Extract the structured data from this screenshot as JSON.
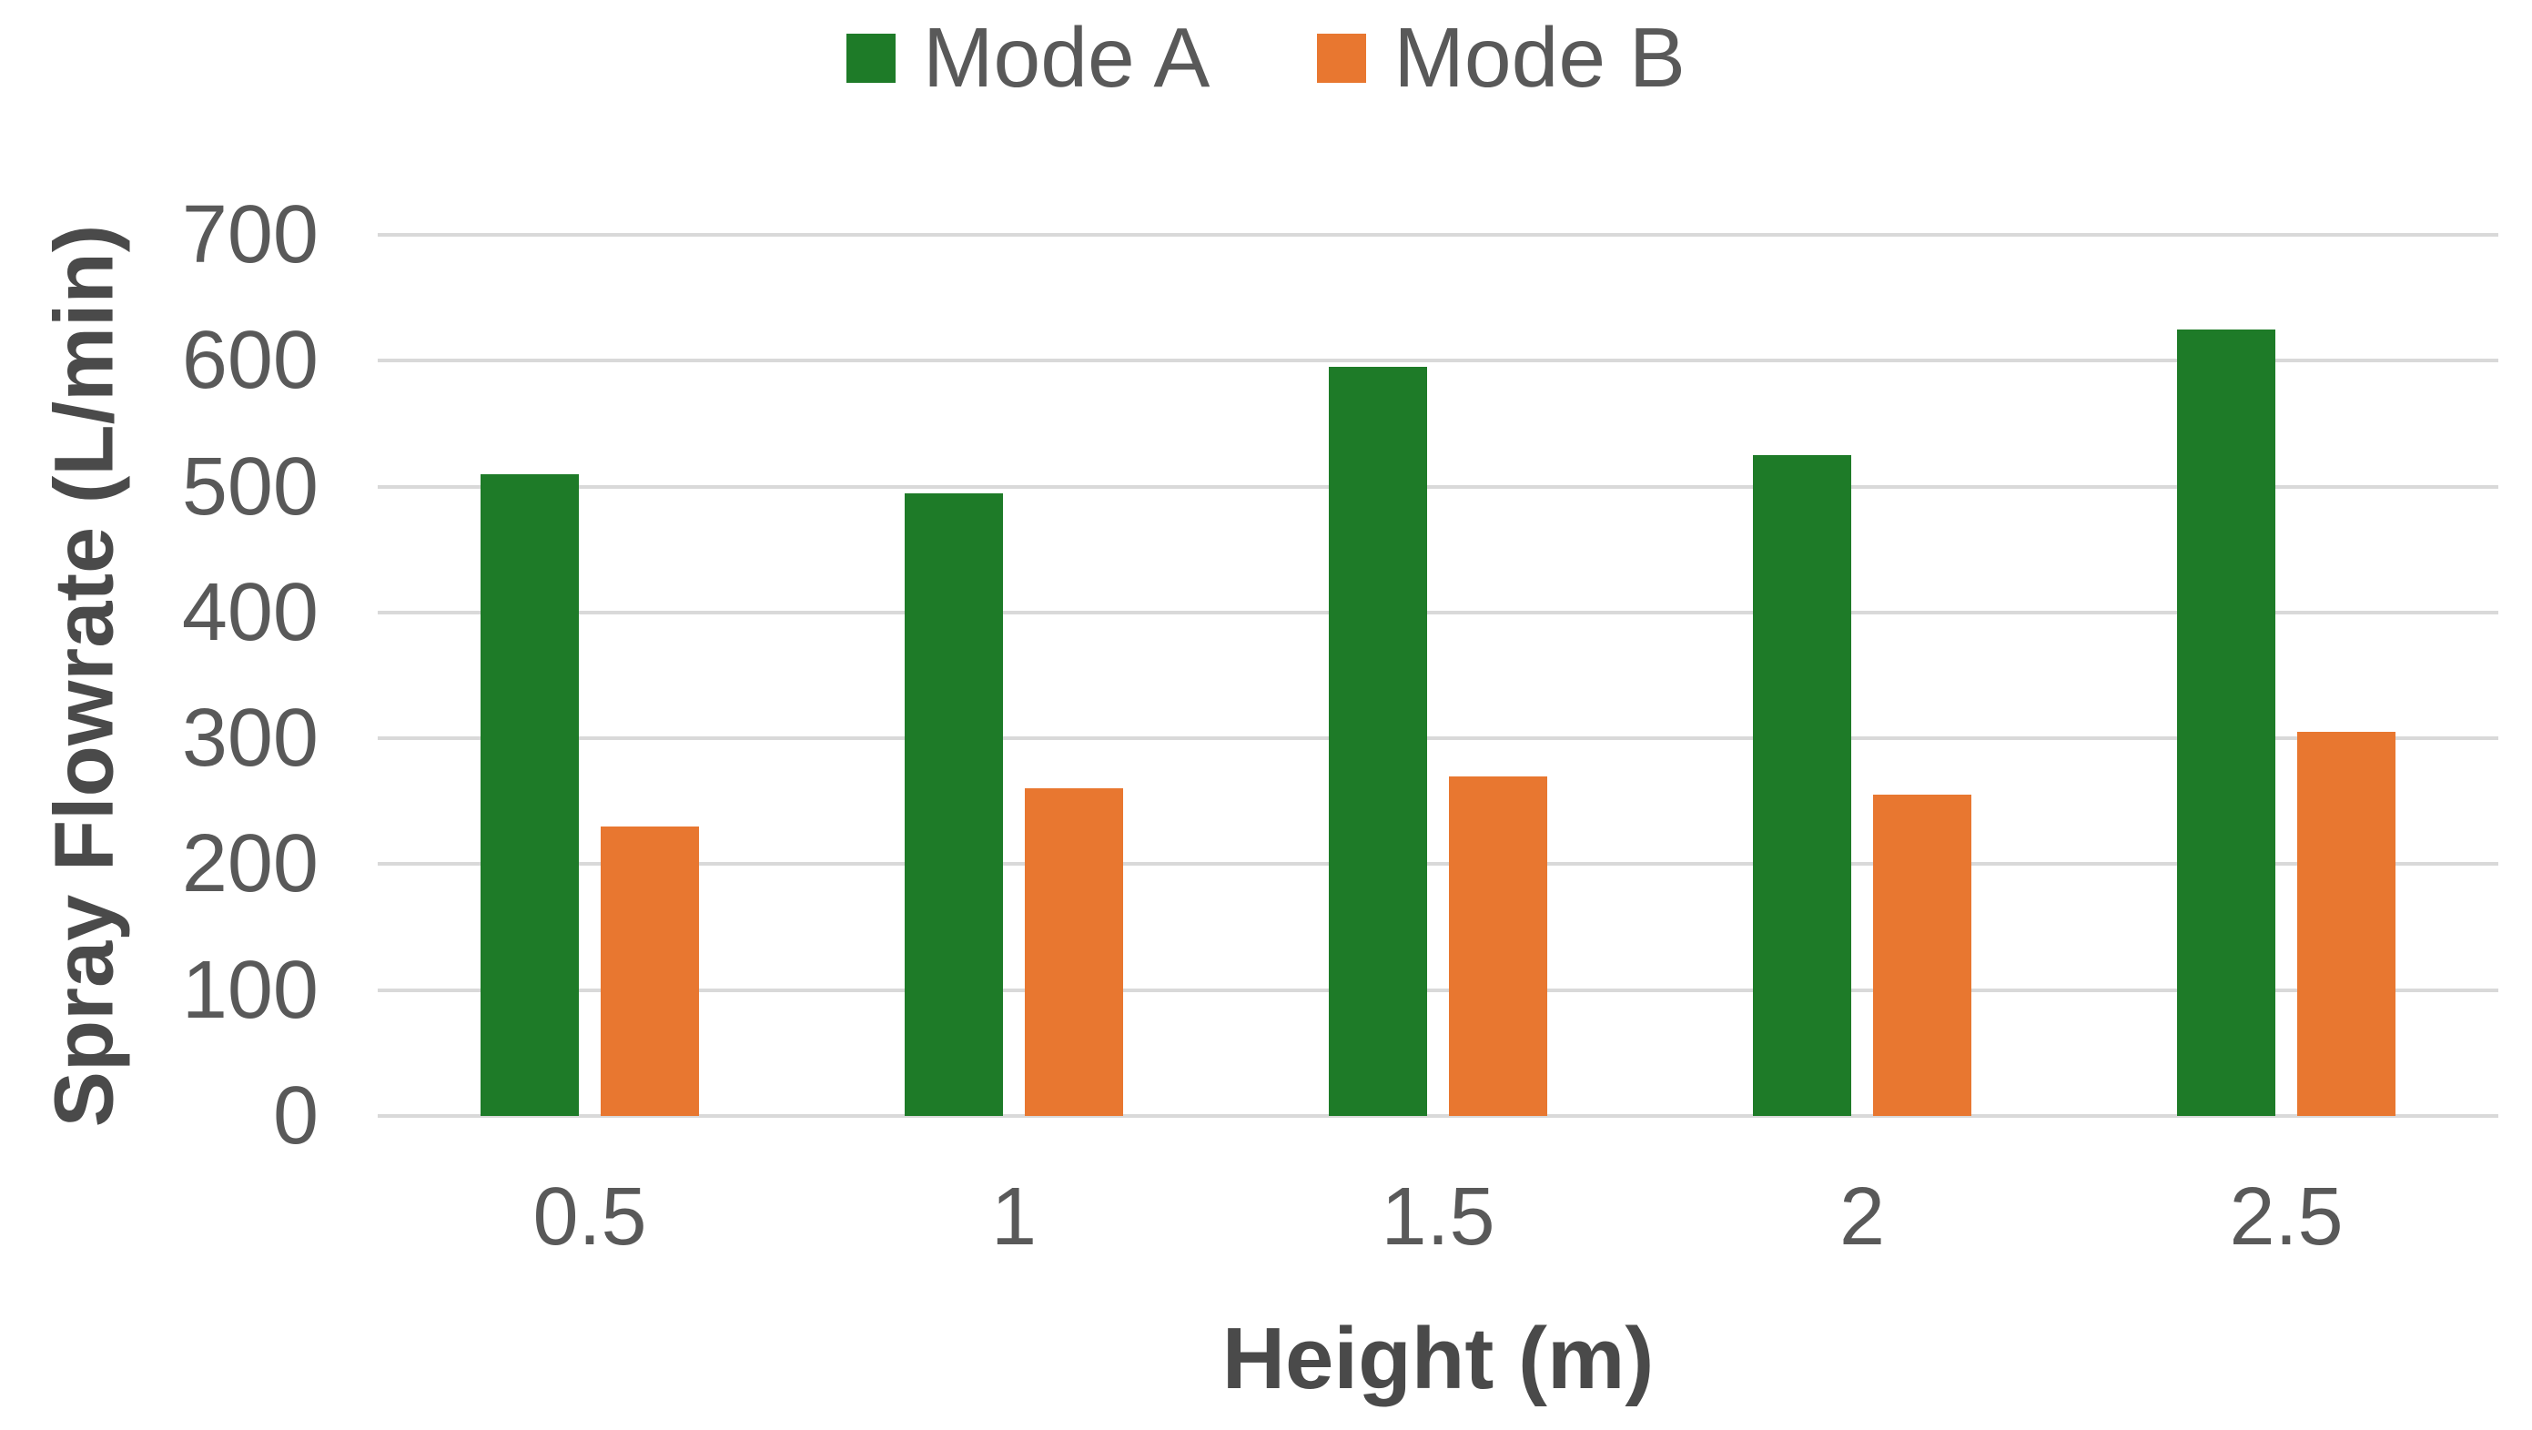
{
  "chart_data": {
    "type": "bar",
    "categories": [
      "0.5",
      "1",
      "1.5",
      "2",
      "2.5"
    ],
    "series": [
      {
        "name": "Mode A",
        "color": "#1E7B28",
        "values": [
          510,
          495,
          595,
          525,
          625
        ]
      },
      {
        "name": "Mode B",
        "color": "#E87730",
        "values": [
          230,
          260,
          270,
          255,
          305
        ]
      }
    ],
    "xlabel": "Height (m)",
    "ylabel": "Spray Flowrate (L/min)",
    "ylim": [
      0,
      700
    ],
    "yticks": [
      0,
      100,
      200,
      300,
      400,
      500,
      600,
      700
    ],
    "grid": "horizontal",
    "gridline_color": "#D9D9D9",
    "tick_label_color": "#595959",
    "axis_title_color": "#4a4a4a",
    "background": "#FFFFFF",
    "legend_position": "top-center",
    "legend_marker": "square"
  }
}
